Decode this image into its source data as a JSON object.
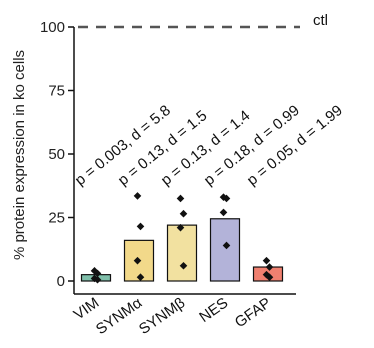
{
  "chart_data": {
    "type": "bar",
    "ylabel": "% protein expression in ko cells",
    "ylim": [
      0,
      100
    ],
    "yticks": [
      0,
      25,
      50,
      75,
      100
    ],
    "categories": [
      "VIM",
      "SYNMα",
      "SYNMβ",
      "NES",
      "GFAP"
    ],
    "values": [
      2.5,
      16,
      22,
      24.5,
      5.5
    ],
    "bar_colors": [
      "#7fbfaa",
      "#f2d98a",
      "#f2e1a0",
      "#b3b3d9",
      "#f08070"
    ],
    "points": [
      [
        4,
        3,
        1,
        0.5
      ],
      [
        33.5,
        21.5,
        8,
        1.5
      ],
      [
        32.5,
        26.5,
        21,
        6
      ],
      [
        33,
        32.5,
        27,
        14
      ],
      [
        8,
        5.5,
        2.5,
        1.5
      ]
    ],
    "annotations": [
      "p = 0.003, d = 5.8",
      "p = 0.13, d = 1.5",
      "p = 0.13, d = 1.4",
      "p = 0.18, d = 0.99",
      "p = 0.05, d = 1.99"
    ],
    "reference_line": {
      "value": 100,
      "label": "ctl",
      "style": "dashed"
    },
    "grid": false,
    "legend": "none"
  }
}
